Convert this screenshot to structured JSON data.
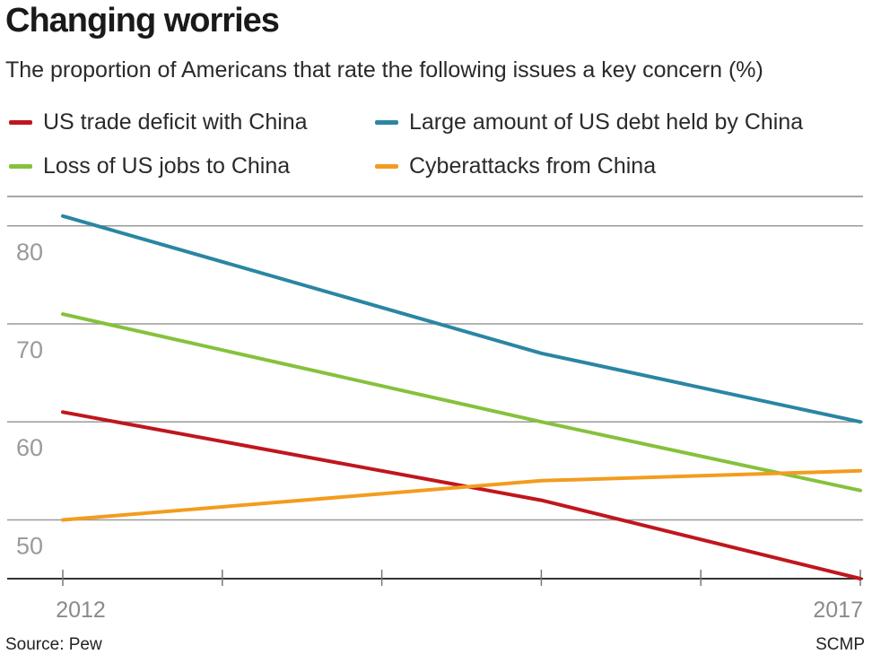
{
  "chart_data": {
    "type": "line",
    "title": "Changing worries",
    "subtitle": "The proportion of Americans that rate the following issues a key concern (%)",
    "x": [
      2012,
      2013,
      2014,
      2015,
      2016,
      2017
    ],
    "x_tick_labels": [
      "2012",
      "",
      "",
      "",
      "",
      "2017"
    ],
    "ylim": [
      44,
      83
    ],
    "y_ticks": [
      50,
      60,
      70,
      80
    ],
    "grid": true,
    "legend_placement": "top",
    "series": [
      {
        "name": "US trade deficit with China",
        "color": "#c0161e",
        "x": [
          2012,
          2015,
          2017
        ],
        "values": [
          61,
          52,
          44
        ]
      },
      {
        "name": "Large amount of US debt held by China",
        "color": "#2a86a3",
        "x": [
          2012,
          2015,
          2017
        ],
        "values": [
          81,
          67,
          60
        ]
      },
      {
        "name": "Loss of US jobs to China",
        "color": "#86c13d",
        "x": [
          2012,
          2015,
          2017
        ],
        "values": [
          71,
          60,
          53
        ]
      },
      {
        "name": "Cyberattacks from China",
        "color": "#f39c1f",
        "x": [
          2012,
          2015,
          2017
        ],
        "values": [
          50,
          54,
          55
        ]
      }
    ]
  },
  "footer": {
    "source": "Source: Pew",
    "credit": "SCMP"
  }
}
